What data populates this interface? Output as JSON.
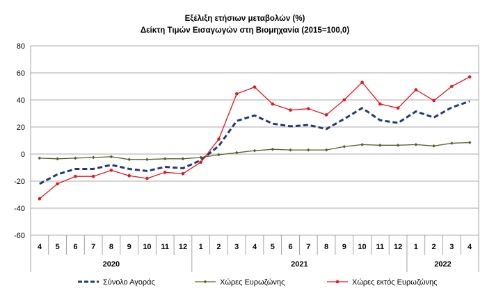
{
  "chart_data": {
    "type": "line",
    "title": "Εξέλιξη ετήσιων μεταβολών (%)",
    "subtitle": "Δείκτη Τιμών Εισαγωγών στη Βιομηχανία (2015=100,0)",
    "categories": [
      "4",
      "5",
      "6",
      "7",
      "8",
      "9",
      "10",
      "11",
      "12",
      "1",
      "2",
      "3",
      "4",
      "5",
      "6",
      "7",
      "8",
      "9",
      "10",
      "11",
      "12",
      "1",
      "2",
      "3",
      "4"
    ],
    "years": [
      {
        "label": "2020",
        "from": 0,
        "to": 8
      },
      {
        "label": "2021",
        "from": 9,
        "to": 20
      },
      {
        "label": "2022",
        "from": 21,
        "to": 24
      }
    ],
    "ylim": [
      -60,
      80
    ],
    "yticks": [
      -60,
      -40,
      -20,
      0,
      20,
      40,
      60,
      80
    ],
    "grid": true,
    "legend_position": "bottom",
    "series": [
      {
        "name": "Σύνολο Αγοράς",
        "color": "#1F3B73",
        "style": "dashed",
        "values": [
          -22,
          -15,
          -11,
          -11,
          -8,
          -11,
          -12.5,
          -9.5,
          -10.5,
          -4.5,
          6,
          24.5,
          28.5,
          22.5,
          20.5,
          21.5,
          18.5,
          26,
          34,
          25,
          23,
          31.5,
          27,
          34.5,
          39
        ]
      },
      {
        "name": "Χώρες Ευρωζώνης",
        "color": "#4F6228",
        "style": "solid",
        "values": [
          -3,
          -3.5,
          -3,
          -2.5,
          -2,
          -4,
          -4,
          -3.5,
          -3.5,
          -2.5,
          -0.5,
          1,
          2.5,
          3.5,
          3,
          3,
          3,
          5.5,
          7,
          6.5,
          6.5,
          7,
          6,
          8,
          8.5
        ]
      },
      {
        "name": "Χώρες εκτός Ευρωζώνης",
        "color": "#E8131B",
        "style": "solid",
        "values": [
          -33,
          -22,
          -16.5,
          -16.5,
          -12,
          -16,
          -18,
          -13.5,
          -14.5,
          -6,
          11,
          44.5,
          49.5,
          37,
          32.5,
          33.5,
          29,
          40,
          53,
          37,
          34,
          47.5,
          39.5,
          50,
          57
        ]
      }
    ]
  }
}
